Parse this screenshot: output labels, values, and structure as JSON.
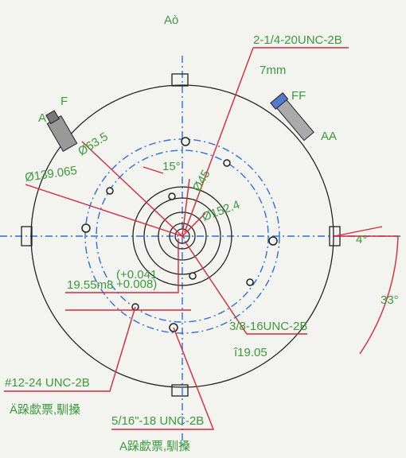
{
  "title": "Aò",
  "labels": {
    "thread_top": "2-1/4-20UNC-2B",
    "depth_top": "7mm",
    "f": "F",
    "a": "A",
    "ff": "FF",
    "aa": "AA",
    "d63": "Ø63.5",
    "angle15": "15°",
    "d45": "Ø45",
    "d139": "Ø139.065",
    "d152": "Ø152.4",
    "angle4": "4°",
    "angle33": "33°",
    "shaft": "19.55m8",
    "tol_upper": "(+0.041",
    "tol_lower": "+0.008)",
    "thread_38": "3/8-16UNC-2B",
    "depth_38": "î19.05",
    "thread_12": "#12-24 UNC-2B",
    "note_12": "Ä跺歔票,馴搡",
    "thread_516": "5/16\"-18 UNC-2B",
    "note_516": "A跺歔票,馴搡"
  }
}
